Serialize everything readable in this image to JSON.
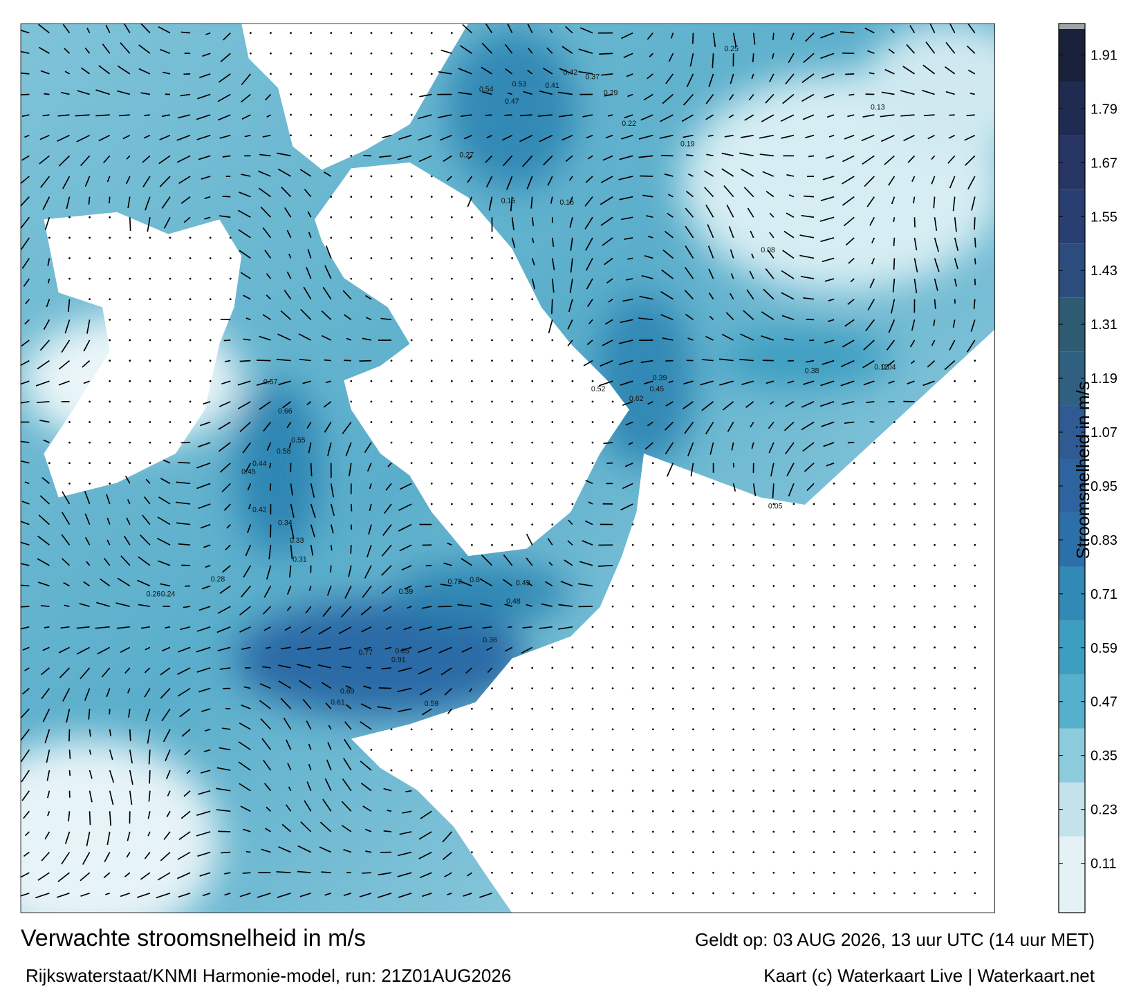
{
  "title": "Verwachte stroomsnelheid in m/s",
  "valid_time": "Geldt op: 03 AUG 2026, 13 uur UTC (14 uur MET)",
  "model_run": "Rijkswaterstaat/KNMI Harmonie-model, run: 21Z01AUG2026",
  "credit": "Kaart (c) Waterkaart Live | Waterkaart.net",
  "colorbar": {
    "label": "Stroomsnelheid in m/s",
    "lim": [
      0,
      1.98
    ],
    "ticks": [
      0.11,
      0.23,
      0.35,
      0.47,
      0.59,
      0.71,
      0.83,
      0.95,
      1.07,
      1.19,
      1.31,
      1.43,
      1.55,
      1.67,
      1.79,
      1.91
    ],
    "colors": [
      "#e4f1f5",
      "#c4e2eb",
      "#8ccbdc",
      "#55b1cb",
      "#3d9ec1",
      "#3189b5",
      "#2c70a9",
      "#2d64a0",
      "#2f5b92",
      "#2f6080",
      "#2e5b72",
      "#2c4c7e",
      "#293f71",
      "#263563",
      "#1f2b51",
      "#1a1f3a"
    ]
  },
  "map_labels": [
    "0.54",
    "0.53",
    "0.47",
    "0.41",
    "0.42",
    "0.37",
    "0.29",
    "0.27",
    "0.25",
    "0.22",
    "0.19",
    "0.16",
    "0.15",
    "0.13",
    "0.57",
    "0.66",
    "0.55",
    "0.58",
    "0.44",
    "0.45",
    "0.42",
    "0.34",
    "0.33",
    "0.31",
    "0.28",
    "0.24",
    "0.26",
    "0.72",
    "0.8",
    "0.77",
    "0.85",
    "0.91",
    "0.69",
    "0.61",
    "0.59",
    "0.49",
    "0.48",
    "0.39",
    "0.36",
    "0.62",
    "0.52",
    "0.45",
    "0.39",
    "0.38",
    "0.12",
    "0.08",
    "0.05",
    "0.04"
  ]
}
